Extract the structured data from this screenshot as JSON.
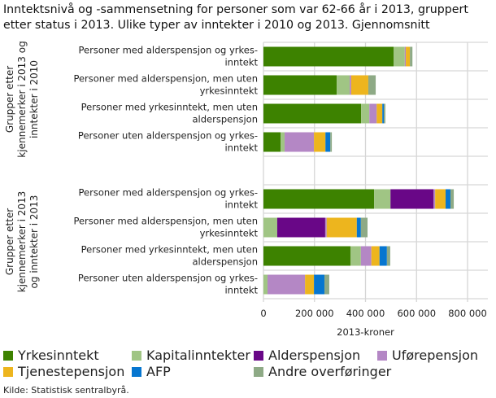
{
  "chart_data": {
    "type": "bar",
    "orientation": "horizontal",
    "stacked": true,
    "title": "Inntektsnivå og -sammensetning for personer som var 62-66 år i 2013, gruppert etter status i 2013. Ulike typer av inntekter i 2010 og 2013. Gjennomsnitt",
    "xlabel": "2013-kroner",
    "xlim": [
      0,
      800000
    ],
    "xticks": [
      "0",
      "200 000",
      "400 000",
      "600 000",
      "800 000"
    ],
    "grid": true,
    "legend_position": "bottom",
    "groups": [
      {
        "label": "Grupper etter kjennemerker i 2013 og inntekter i 2010",
        "categories": [
          "Personer med alderspensjon og yrkes-inntekt",
          "Personer med alderspensjon, men uten yrkesinntekt",
          "Personer med yrkesinntekt, men uten alderspensjon",
          "Personer uten alderspensjon og yrkes-inntekt"
        ]
      },
      {
        "label": "Grupper etter kjennemerker i 2013 og inntekter i 2013",
        "categories": [
          "Personer med alderspensjon og yrkes-inntekt",
          "Personer med alderspensjon, men uten yrkesinntekt",
          "Personer med yrkesinntekt, men uten alderspensjon",
          "Personer uten alderspensjon og yrkes-inntekt"
        ]
      }
    ],
    "series": [
      {
        "name": "Yrkesinntekt",
        "color": "#3d8200",
        "values": [
          [
            510000,
            287000,
            383000,
            67000
          ],
          [
            434000,
            0,
            341000,
            0
          ]
        ]
      },
      {
        "name": "Kapitalinntekter",
        "color": "#a0c584",
        "values": [
          [
            44000,
            51000,
            32000,
            16000
          ],
          [
            64000,
            54000,
            41000,
            16000
          ]
        ]
      },
      {
        "name": "Alderspensjon",
        "color": "#690787",
        "values": [
          [
            0,
            0,
            0,
            0
          ],
          [
            169000,
            188000,
            0,
            0
          ]
        ]
      },
      {
        "name": "Uførepensjon",
        "color": "#b487c5",
        "values": [
          [
            4000,
            6000,
            29000,
            115000
          ],
          [
            6000,
            6000,
            41000,
            147000
          ]
        ]
      },
      {
        "name": "Tjenestepensjon",
        "color": "#edb51e",
        "values": [
          [
            16000,
            67000,
            22000,
            45000
          ],
          [
            41000,
            118000,
            32000,
            35000
          ]
        ]
      },
      {
        "name": "AFP",
        "color": "#0676d0",
        "values": [
          [
            0,
            0,
            6000,
            19000
          ],
          [
            19000,
            16000,
            29000,
            41000
          ]
        ]
      },
      {
        "name": "Andre overføringer",
        "color": "#8eaa86",
        "values": [
          [
            10000,
            29000,
            6000,
            6000
          ],
          [
            13000,
            26000,
            13000,
            19000
          ]
        ]
      }
    ]
  },
  "legend": [
    "Yrkesinntekt",
    "Kapitalinntekter",
    "Alderspensjon",
    "Uførepensjon",
    "Tjenestepensjon",
    "AFP",
    "Andre overføringer"
  ],
  "source": "Kilde: Statistisk sentralbyrå."
}
